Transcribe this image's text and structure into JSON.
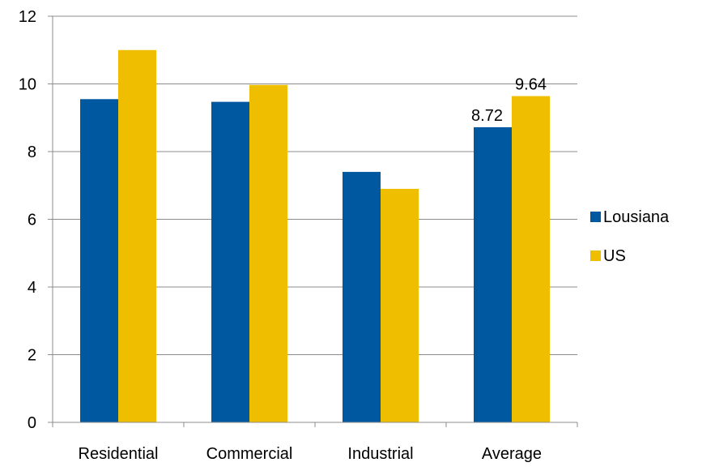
{
  "chart_data": {
    "type": "bar",
    "categories": [
      "Residential",
      "Commercial",
      "Industrial",
      "Average"
    ],
    "series": [
      {
        "name": "Lousiana",
        "color": "#0058a0",
        "values": [
          9.55,
          9.47,
          7.4,
          8.72
        ],
        "data_labels": [
          null,
          null,
          null,
          "8.72"
        ]
      },
      {
        "name": "US",
        "color": "#f0be00",
        "values": [
          11.0,
          9.97,
          6.9,
          9.64
        ],
        "data_labels": [
          null,
          null,
          null,
          "9.64"
        ]
      }
    ],
    "title": "",
    "xlabel": "",
    "ylabel": "",
    "ylim": [
      0,
      12
    ],
    "yticks": [
      "0",
      "2",
      "4",
      "6",
      "8",
      "10",
      "12"
    ],
    "grid": true,
    "legend": "right"
  }
}
